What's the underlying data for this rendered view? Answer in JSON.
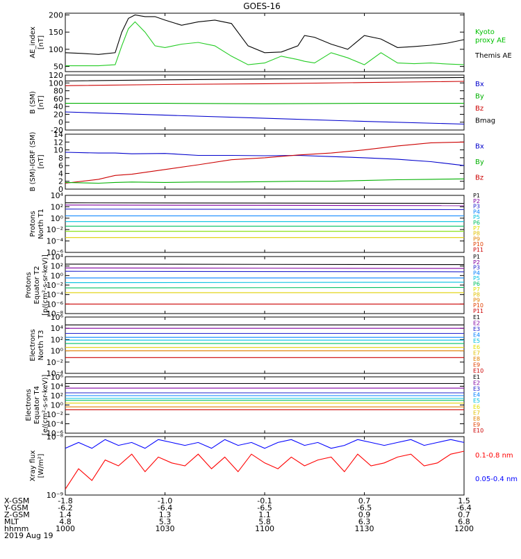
{
  "title": "GOES-16",
  "x_time": [
    "1000",
    "1030",
    "1100",
    "1130",
    "1200"
  ],
  "ephemeris": {
    "labels": [
      "X-GSM",
      "Y-GSM",
      "Z-GSM",
      "MLT",
      "hhmm",
      "2019 Aug 19"
    ],
    "rows": [
      [
        "-1.8",
        "-1.0",
        "-0.1",
        "0.7",
        "1.5"
      ],
      [
        "-6.2",
        "-6.4",
        "-6.5",
        "-6.5",
        "-6.4"
      ],
      [
        "1.4",
        "1.3",
        "1.1",
        "0.9",
        "0.7"
      ],
      [
        "4.8",
        "5.3",
        "5.8",
        "6.3",
        "6.8"
      ],
      [
        "1000",
        "1030",
        "1100",
        "1130",
        "1200"
      ]
    ]
  },
  "chart_data": [
    {
      "type": "line",
      "ylabel": "AE_index\n[nT]",
      "ylim": [
        35,
        205
      ],
      "yscale": "linear",
      "yticks": [
        50,
        100,
        150,
        200
      ],
      "yticklabels": [
        "50",
        "100",
        "150",
        "200"
      ],
      "x": [
        0,
        5,
        10,
        15,
        17,
        19,
        21,
        24,
        27,
        30,
        35,
        40,
        45,
        50,
        55,
        60,
        65,
        70,
        72,
        75,
        80,
        85,
        90,
        95,
        100,
        105,
        110,
        115,
        120
      ],
      "series": [
        {
          "name": "Themis AE",
          "color": "#000000",
          "values": [
            90,
            88,
            85,
            90,
            150,
            190,
            200,
            195,
            195,
            185,
            170,
            180,
            185,
            175,
            110,
            90,
            92,
            110,
            140,
            135,
            115,
            100,
            140,
            130,
            105,
            108,
            112,
            118,
            128
          ]
        },
        {
          "name": "Kyoto\nproxy AE",
          "color": "#22cc22",
          "values": [
            52,
            52,
            52,
            55,
            110,
            160,
            180,
            150,
            110,
            105,
            115,
            120,
            110,
            80,
            55,
            60,
            80,
            70,
            65,
            60,
            90,
            75,
            55,
            90,
            60,
            58,
            60,
            57,
            55
          ]
        }
      ],
      "legend": [
        {
          "text": "Kyoto\nproxy AE",
          "color": "#00c000"
        },
        {
          "text": "Themis AE",
          "color": "#000000"
        }
      ]
    },
    {
      "type": "line",
      "ylabel": "B (SM)\n[nT]",
      "ylim": [
        -20,
        120
      ],
      "yscale": "linear",
      "yticks": [
        -20,
        0,
        20,
        40,
        60,
        80,
        100,
        120
      ],
      "yticklabels": [
        "-20",
        "0",
        "20",
        "40",
        "60",
        "80",
        "100",
        "120"
      ],
      "x": [
        0,
        30,
        60,
        90,
        120
      ],
      "series": [
        {
          "name": "Bmag",
          "color": "#000000",
          "values": [
            105,
            108,
            110,
            112,
            114
          ]
        },
        {
          "name": "Bz",
          "color": "#cc0000",
          "values": [
            93,
            96,
            98,
            101,
            104
          ]
        },
        {
          "name": "By",
          "color": "#00b000",
          "values": [
            48,
            48,
            47,
            48,
            48
          ]
        },
        {
          "name": "Bx",
          "color": "#0000cc",
          "values": [
            26,
            18,
            10,
            2,
            -5
          ]
        }
      ],
      "legend": [
        {
          "text": "Bx",
          "color": "#0000cc"
        },
        {
          "text": "By",
          "color": "#00b000"
        },
        {
          "text": "Bz",
          "color": "#cc0000"
        },
        {
          "text": "Bmag",
          "color": "#000000"
        }
      ]
    },
    {
      "type": "line",
      "ylabel": "B (SM)-IGRF (SM)\n[nT]",
      "ylim": [
        0,
        14
      ],
      "yscale": "linear",
      "yticks": [
        0,
        2,
        4,
        6,
        8,
        10,
        12,
        14
      ],
      "yticklabels": [
        "0",
        "2",
        "4",
        "6",
        "8",
        "10",
        "12",
        "14"
      ],
      "x": [
        0,
        10,
        15,
        20,
        30,
        40,
        50,
        60,
        70,
        80,
        90,
        100,
        110,
        120
      ],
      "series": [
        {
          "name": "Bx",
          "color": "#0000cc",
          "values": [
            9.4,
            9.2,
            9.2,
            9.0,
            9.1,
            8.6,
            8.6,
            8.5,
            8.6,
            8.3,
            8.0,
            7.6,
            7.0,
            6.0
          ]
        },
        {
          "name": "Bz",
          "color": "#cc0000",
          "values": [
            1.5,
            2.5,
            3.5,
            3.8,
            5.0,
            6.2,
            7.5,
            8.0,
            8.7,
            9.2,
            10.0,
            11.0,
            11.8,
            12.0
          ]
        },
        {
          "name": "By",
          "color": "#00b000",
          "values": [
            1.7,
            1.5,
            1.7,
            1.8,
            1.7,
            1.8,
            1.8,
            1.9,
            2.0,
            2.0,
            2.2,
            2.4,
            2.5,
            2.6
          ]
        }
      ],
      "legend": [
        {
          "text": "Bx",
          "color": "#0000cc"
        },
        {
          "text": "By",
          "color": "#00b000"
        },
        {
          "text": "Bz",
          "color": "#cc0000"
        }
      ]
    },
    {
      "type": "line",
      "ylabel": "Protons\nNorth T1",
      "ylim": [
        -6,
        4
      ],
      "yscale": "log",
      "yticks": [
        -6,
        -4,
        -2,
        0,
        2,
        4
      ],
      "yticklabels": [
        "10⁻⁶",
        "10⁻⁴",
        "10⁻²",
        "10⁰",
        "10²",
        "10⁴"
      ],
      "x": [
        0,
        120
      ],
      "series": [
        {
          "name": "P1",
          "color": "#000000",
          "values": [
            2.7,
            2.6
          ]
        },
        {
          "name": "P2",
          "color": "#8000a0",
          "values": [
            2.3,
            2.2
          ]
        },
        {
          "name": "P3",
          "color": "#2020cc",
          "values": [
            1.6,
            1.5
          ]
        },
        {
          "name": "P4",
          "color": "#0080ff",
          "values": [
            0.4,
            0.4
          ]
        },
        {
          "name": "P5",
          "color": "#00c0e0",
          "values": [
            -0.6,
            -0.6
          ]
        },
        {
          "name": "P6",
          "color": "#00c060",
          "values": [
            -1.4,
            -1.4
          ]
        },
        {
          "name": "P7",
          "color": "#80e000",
          "values": [
            -2.3,
            -2.3
          ]
        },
        {
          "name": "P8",
          "color": "#e0d000",
          "values": [
            -3.4,
            -3.4
          ]
        }
      ],
      "legend": [
        {
          "text": "P1",
          "color": "#000000"
        },
        {
          "text": "P2",
          "color": "#8000a0"
        },
        {
          "text": "P3",
          "color": "#2020cc"
        },
        {
          "text": "P4",
          "color": "#0080ff"
        },
        {
          "text": "P5",
          "color": "#00c0e0"
        },
        {
          "text": "P6",
          "color": "#00c060"
        },
        {
          "text": "P7",
          "color": "#e0e000"
        },
        {
          "text": "P8",
          "color": "#e0c000"
        },
        {
          "text": "P9",
          "color": "#e08000"
        },
        {
          "text": "P10",
          "color": "#e04000"
        },
        {
          "text": "P11",
          "color": "#cc0000"
        }
      ]
    },
    {
      "type": "line",
      "ylabel": "Protons\nEquator T2\n[p/(cm²-s-sr-keV)]",
      "ylim": [
        -8,
        4
      ],
      "yscale": "log",
      "yticks": [
        -8,
        -6,
        -4,
        -2,
        0,
        2,
        4
      ],
      "yticklabels": [
        "10⁻⁸",
        "10⁻⁶",
        "10⁻⁴",
        "10⁻²",
        "10⁰",
        "10²",
        "10⁴"
      ],
      "x": [
        0,
        120
      ],
      "series": [
        {
          "name": "P1",
          "color": "#000000",
          "values": [
            2.4,
            2.3
          ]
        },
        {
          "name": "P2",
          "color": "#8000a0",
          "values": [
            1.6,
            1.5
          ]
        },
        {
          "name": "P3",
          "color": "#2020cc",
          "values": [
            0.9,
            0.8
          ]
        },
        {
          "name": "P4",
          "color": "#0080ff",
          "values": [
            -0.5,
            -0.5
          ]
        },
        {
          "name": "P5",
          "color": "#00c0e0",
          "values": [
            -1.5,
            -1.4
          ]
        },
        {
          "name": "P6",
          "color": "#00c060",
          "values": [
            -2.6,
            -2.5
          ]
        },
        {
          "name": "P7",
          "color": "#e0d000",
          "values": [
            -3.6,
            -3.6
          ]
        },
        {
          "name": "P10",
          "color": "#cc0000",
          "values": [
            -6.0,
            -6.0
          ]
        }
      ],
      "legend": [
        {
          "text": "P1",
          "color": "#000000"
        },
        {
          "text": "P2",
          "color": "#8000a0"
        },
        {
          "text": "P3",
          "color": "#2020cc"
        },
        {
          "text": "P4",
          "color": "#0080ff"
        },
        {
          "text": "P5",
          "color": "#00c0e0"
        },
        {
          "text": "P6",
          "color": "#00c060"
        },
        {
          "text": "P7",
          "color": "#e0e000"
        },
        {
          "text": "P8",
          "color": "#e0c000"
        },
        {
          "text": "P9",
          "color": "#e08000"
        },
        {
          "text": "P10",
          "color": "#e04000"
        },
        {
          "text": "P11",
          "color": "#cc0000"
        }
      ]
    },
    {
      "type": "line",
      "ylabel": "Electrons\nNorth T3",
      "ylim": [
        -4,
        6
      ],
      "yscale": "log",
      "yticks": [
        -4,
        -2,
        0,
        2,
        4,
        6
      ],
      "yticklabels": [
        "10⁻⁴",
        "10⁻²",
        "10⁰",
        "10²",
        "10⁴",
        "10⁶"
      ],
      "x": [
        0,
        120
      ],
      "series": [
        {
          "name": "E1",
          "color": "#000000",
          "values": [
            4.6,
            4.6
          ]
        },
        {
          "name": "E2",
          "color": "#8000a0",
          "values": [
            4.0,
            4.0
          ]
        },
        {
          "name": "E3",
          "color": "#2020cc",
          "values": [
            3.1,
            3.1
          ]
        },
        {
          "name": "E4",
          "color": "#0080ff",
          "values": [
            2.4,
            2.4
          ]
        },
        {
          "name": "E5",
          "color": "#00c0e0",
          "values": [
            1.9,
            1.9
          ]
        },
        {
          "name": "E6",
          "color": "#00c060",
          "values": [
            1.3,
            1.3
          ]
        },
        {
          "name": "E7",
          "color": "#e0d000",
          "values": [
            0.6,
            0.6
          ]
        },
        {
          "name": "E8",
          "color": "#e08000",
          "values": [
            0.0,
            0.0
          ]
        },
        {
          "name": "E9",
          "color": "#cc0000",
          "values": [
            -1.2,
            -1.2
          ]
        }
      ],
      "legend": [
        {
          "text": "E1",
          "color": "#000000"
        },
        {
          "text": "E2",
          "color": "#8000a0"
        },
        {
          "text": "E3",
          "color": "#2020cc"
        },
        {
          "text": "E4",
          "color": "#0080ff"
        },
        {
          "text": "E5",
          "color": "#00c0e0"
        },
        {
          "text": "E6",
          "color": "#e0e000"
        },
        {
          "text": "E7",
          "color": "#e0c000"
        },
        {
          "text": "E8",
          "color": "#e08000"
        },
        {
          "text": "E9",
          "color": "#e04000"
        },
        {
          "text": "E10",
          "color": "#cc0000"
        }
      ]
    },
    {
      "type": "line",
      "ylabel": "Electrons\nEquator T4\n[e/(cm²-s-sr-keV)]",
      "ylim": [
        -6,
        6
      ],
      "yscale": "log",
      "yticks": [
        -6,
        -4,
        -2,
        0,
        2,
        4,
        6
      ],
      "yticklabels": [
        "10⁻⁶",
        "10⁻⁴",
        "10⁻²",
        "10⁰",
        "10²",
        "10⁴",
        "10⁶"
      ],
      "x": [
        0,
        120
      ],
      "series": [
        {
          "name": "E1",
          "color": "#000000",
          "values": [
            4.6,
            4.6
          ]
        },
        {
          "name": "E2",
          "color": "#8000a0",
          "values": [
            3.6,
            3.6
          ]
        },
        {
          "name": "E3",
          "color": "#2020cc",
          "values": [
            2.6,
            2.6
          ]
        },
        {
          "name": "E4",
          "color": "#0080ff",
          "values": [
            2.0,
            2.0
          ]
        },
        {
          "name": "E5",
          "color": "#00c0e0",
          "values": [
            1.4,
            1.4
          ]
        },
        {
          "name": "E6",
          "color": "#00c060",
          "values": [
            1.0,
            1.0
          ]
        },
        {
          "name": "E7",
          "color": "#e0d000",
          "values": [
            0.4,
            0.4
          ]
        },
        {
          "name": "E8",
          "color": "#e08000",
          "values": [
            -0.4,
            -0.4
          ]
        },
        {
          "name": "E9",
          "color": "#cc0000",
          "values": [
            -1.0,
            -1.0
          ]
        }
      ],
      "legend": [
        {
          "text": "E1",
          "color": "#000000"
        },
        {
          "text": "E2",
          "color": "#8000a0"
        },
        {
          "text": "E3",
          "color": "#2020cc"
        },
        {
          "text": "E4",
          "color": "#0080ff"
        },
        {
          "text": "E5",
          "color": "#00c0e0"
        },
        {
          "text": "E6",
          "color": "#e0e000"
        },
        {
          "text": "E7",
          "color": "#e0c000"
        },
        {
          "text": "E8",
          "color": "#e08000"
        },
        {
          "text": "E9",
          "color": "#e04000"
        },
        {
          "text": "E10",
          "color": "#cc0000"
        }
      ]
    },
    {
      "type": "line",
      "ylabel": "Xray flux\n[W/m²]",
      "ylim": [
        -9,
        -8
      ],
      "yscale": "log",
      "yticks": [
        -9,
        -8
      ],
      "yticklabels": [
        "10⁻⁹",
        "10⁻⁸"
      ],
      "x": [
        0,
        4,
        8,
        12,
        16,
        20,
        24,
        28,
        32,
        36,
        40,
        44,
        48,
        52,
        56,
        60,
        64,
        68,
        72,
        76,
        80,
        84,
        88,
        92,
        96,
        100,
        104,
        108,
        112,
        116,
        120
      ],
      "series": [
        {
          "name": "0.1-0.8 nm",
          "color": "#ff0000",
          "values": [
            -8.9,
            -8.55,
            -8.75,
            -8.4,
            -8.5,
            -8.3,
            -8.6,
            -8.35,
            -8.45,
            -8.5,
            -8.3,
            -8.55,
            -8.35,
            -8.6,
            -8.3,
            -8.45,
            -8.55,
            -8.35,
            -8.5,
            -8.4,
            -8.35,
            -8.6,
            -8.3,
            -8.5,
            -8.45,
            -8.35,
            -8.3,
            -8.5,
            -8.45,
            -8.3,
            -8.25
          ]
        },
        {
          "name": "0.05-0.4 nm",
          "color": "#0000ff",
          "values": [
            -8.2,
            -8.1,
            -8.2,
            -8.05,
            -8.15,
            -8.1,
            -8.2,
            -8.05,
            -8.1,
            -8.15,
            -8.1,
            -8.2,
            -8.05,
            -8.15,
            -8.1,
            -8.2,
            -8.1,
            -8.05,
            -8.15,
            -8.1,
            -8.2,
            -8.15,
            -8.05,
            -8.1,
            -8.15,
            -8.1,
            -8.05,
            -8.15,
            -8.1,
            -8.05,
            -8.1
          ]
        }
      ],
      "legend": [
        {
          "text": "0.1-0.8 nm",
          "color": "#ff0000"
        },
        {
          "text": "0.05-0.4 nm",
          "color": "#0000ff"
        }
      ]
    }
  ]
}
